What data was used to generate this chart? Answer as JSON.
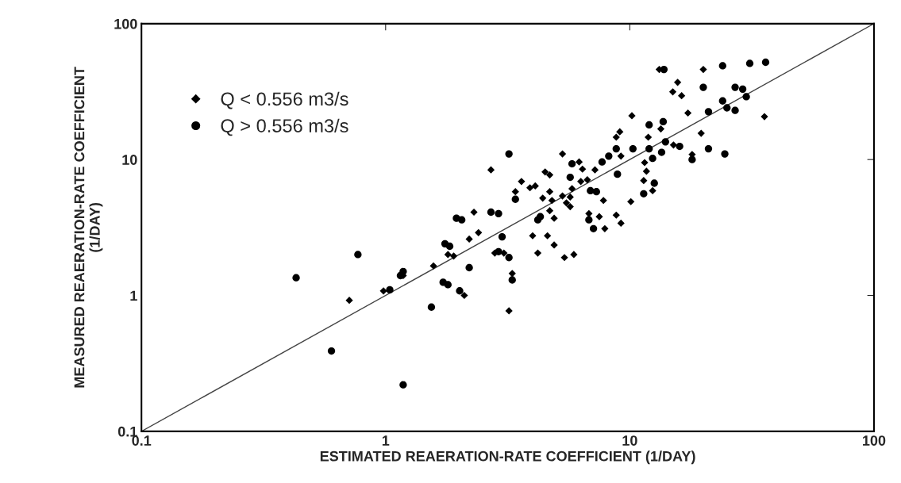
{
  "chart_data": {
    "type": "scatter",
    "xlabel": "ESTIMATED REAERATION-RATE COEFFICIENT (1/DAY)",
    "ylabel": "MEASURED REAERATION-RATE COEFFICIENT\n(1/DAY)",
    "log": "xy",
    "xlim": [
      0.1,
      100
    ],
    "ylim": [
      0.1,
      100
    ],
    "xticks": [
      0.1,
      1,
      10,
      100
    ],
    "yticks": [
      0.1,
      1,
      10,
      100
    ],
    "grid": false,
    "legend": "top left",
    "series": [
      {
        "name": "Q < 0.556 m3/s",
        "color": "#000000",
        "marker": "diamond",
        "x": [
          0.71,
          0.98,
          1.57,
          1.8,
          1.18,
          13.2,
          20,
          15.7,
          15,
          16.3,
          17.3,
          35.6,
          10.2,
          13.4,
          11.9,
          9.1,
          8.8,
          19.6,
          15.1,
          18,
          5.3,
          2.7,
          4.5,
          4.7,
          6.2,
          6.4,
          7.2,
          9.2,
          11.5,
          11.7,
          11.4,
          3.6,
          3.9,
          4.1,
          3.4,
          4.7,
          4.4,
          4.8,
          5.3,
          5.7,
          5.5,
          5.7,
          5.8,
          6.3,
          6.7,
          7.8,
          10.1,
          12.4,
          2.3,
          4.7,
          4.9,
          6.8,
          7.5,
          8.8,
          9.2,
          7.9,
          2.4,
          4.0,
          4.6,
          1.9,
          2.2,
          2.1,
          3.05,
          2.8,
          3.3,
          3.2,
          4.9,
          4.2,
          5.4,
          5.9
        ],
        "values": [
          0.92,
          1.08,
          1.65,
          2.0,
          1.4,
          46,
          46,
          37,
          31.5,
          29.5,
          22,
          20.7,
          21,
          16.8,
          14.6,
          16,
          14.6,
          15.6,
          12.8,
          10.9,
          11,
          8.4,
          8.1,
          7.7,
          9.6,
          8.5,
          8.4,
          10.6,
          9.5,
          8.2,
          7.0,
          6.9,
          6.2,
          6.4,
          5.8,
          5.8,
          5.2,
          5.0,
          5.4,
          5.3,
          4.8,
          4.5,
          6.1,
          6.9,
          7.1,
          5.0,
          4.9,
          5.9,
          4.1,
          4.2,
          3.7,
          4.0,
          3.8,
          3.9,
          3.4,
          3.1,
          2.9,
          2.75,
          2.75,
          1.95,
          2.6,
          1.0,
          2.05,
          2.05,
          1.45,
          0.77,
          2.35,
          2.05,
          1.9,
          2.0
        ]
      },
      {
        "name": "Q > 0.556 m3/s",
        "color": "#000000",
        "marker": "circle",
        "x": [
          0.43,
          0.77,
          0.6,
          1.18,
          1.95,
          1.75,
          1.72,
          1.54,
          2.01,
          1.18,
          1.04,
          1.15,
          13.8,
          24,
          31,
          36,
          20,
          27,
          29,
          24,
          30,
          21,
          25,
          27,
          12,
          13.7,
          10.3,
          8.8,
          12,
          14,
          16,
          21,
          24.5,
          13.5,
          12.4,
          18,
          8.2,
          7.7,
          5.8,
          8.9,
          5.7,
          3.4,
          3.2,
          6.9,
          7.3,
          12.6,
          11.4,
          2.05,
          2.7,
          2.9,
          4.2,
          4.3,
          6.8,
          7.1,
          3.0,
          1.83,
          2.2,
          1.8,
          2.9,
          3.2,
          3.3
        ],
        "values": [
          1.35,
          2.0,
          0.39,
          0.22,
          3.7,
          2.4,
          1.25,
          0.82,
          1.08,
          1.5,
          1.1,
          1.4,
          46,
          49,
          51,
          52,
          34,
          34,
          33,
          27,
          29,
          22.5,
          24,
          23,
          18,
          19,
          12,
          12,
          12,
          13.5,
          12.5,
          12,
          11,
          11.3,
          10.2,
          10,
          10.6,
          9.6,
          9.3,
          7.8,
          7.4,
          5.1,
          11,
          5.9,
          5.8,
          6.7,
          5.6,
          3.6,
          4.1,
          4.0,
          3.6,
          3.8,
          3.6,
          3.1,
          2.7,
          2.3,
          1.6,
          1.2,
          2.1,
          1.9,
          1.3
        ]
      },
      {
        "type": "line",
        "color": "#444444",
        "marker": "none",
        "x": [
          0.1,
          100
        ],
        "values": [
          0.1,
          100
        ]
      }
    ]
  }
}
